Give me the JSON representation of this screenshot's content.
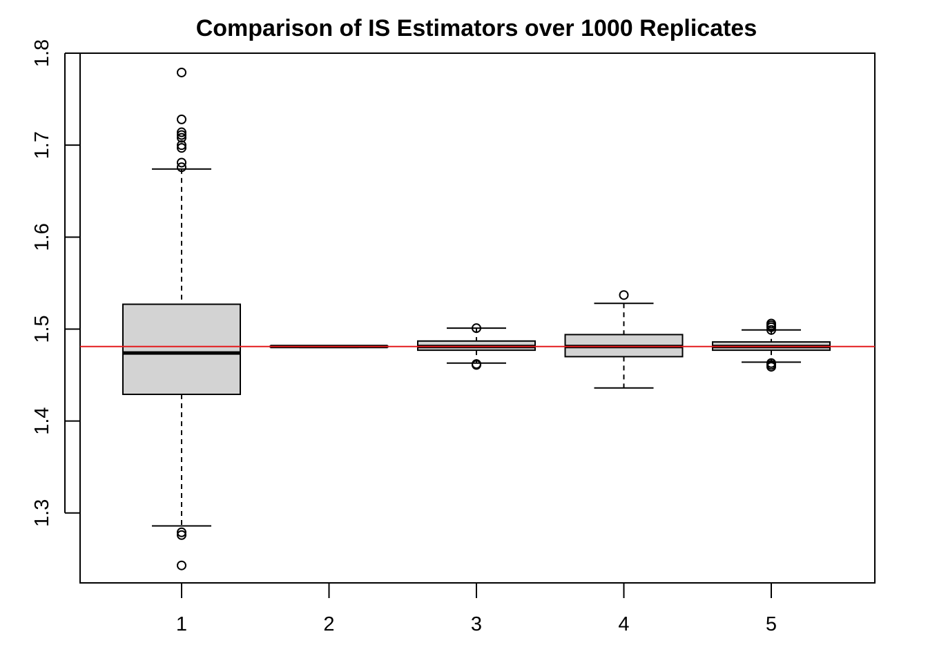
{
  "chart_data": {
    "type": "boxplot",
    "title": "Comparison of IS Estimators over 1000 Replicates",
    "xlabel": "",
    "ylabel": "",
    "categories": [
      "1",
      "2",
      "3",
      "4",
      "5"
    ],
    "ylim": [
      1.224,
      1.8
    ],
    "yticks": [
      "1.3",
      "1.4",
      "1.5",
      "1.6",
      "1.7",
      "1.8"
    ],
    "grid": false,
    "reference_line": {
      "value": 1.481,
      "color": "#e41a1c"
    },
    "box_fill": "#d3d3d3",
    "boxes": [
      {
        "category": "1",
        "whisker_low": 1.286,
        "q1": 1.429,
        "median": 1.474,
        "q3": 1.527,
        "whisker_high": 1.674,
        "outliers": [
          1.779,
          1.728,
          1.714,
          1.711,
          1.708,
          1.7,
          1.697,
          1.681,
          1.676,
          1.279,
          1.276,
          1.243
        ]
      },
      {
        "category": "2",
        "whisker_low": 1.48,
        "q1": 1.4805,
        "median": 1.481,
        "q3": 1.4815,
        "whisker_high": 1.482,
        "outliers": []
      },
      {
        "category": "3",
        "whisker_low": 1.463,
        "q1": 1.477,
        "median": 1.481,
        "q3": 1.487,
        "whisker_high": 1.501,
        "outliers": [
          1.501,
          1.462,
          1.461
        ]
      },
      {
        "category": "4",
        "whisker_low": 1.436,
        "q1": 1.47,
        "median": 1.481,
        "q3": 1.494,
        "whisker_high": 1.528,
        "outliers": [
          1.537
        ]
      },
      {
        "category": "5",
        "whisker_low": 1.464,
        "q1": 1.477,
        "median": 1.481,
        "q3": 1.486,
        "whisker_high": 1.499,
        "outliers": [
          1.506,
          1.504,
          1.502,
          1.499,
          1.463,
          1.461,
          1.459
        ]
      }
    ]
  }
}
